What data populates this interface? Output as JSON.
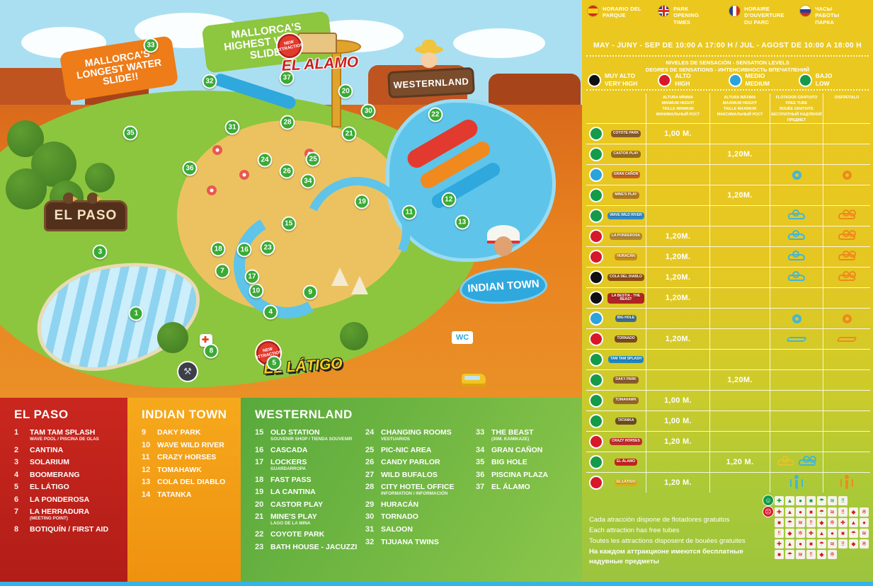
{
  "map": {
    "bubbles": {
      "longest": "MALLORCA'S LONGEST WATER SLIDE!!",
      "highest": "MALLORCA'S HIGHEST WATER SLIDE!!"
    },
    "signs": {
      "el_paso": "EL PASO",
      "indian_town": "INDIAN TOWN",
      "westernland": "WESTERNLAND",
      "el_alamo": "EL ALAMO",
      "el_latigo": "EL LÁTIGO",
      "new_badge": "NEW ATTRACTION",
      "wc": "WC"
    },
    "markers": [
      {
        "n": "1",
        "x": 23.4,
        "y": 78.9
      },
      {
        "n": "3",
        "x": 17.2,
        "y": 63.4
      },
      {
        "n": "4",
        "x": 46.5,
        "y": 78.4
      },
      {
        "n": "5",
        "x": 47.1,
        "y": 91.3
      },
      {
        "n": "7",
        "x": 38.2,
        "y": 68.2
      },
      {
        "n": "8",
        "x": 36.3,
        "y": 88.2
      },
      {
        "n": "9",
        "x": 53.3,
        "y": 73.4
      },
      {
        "n": "10",
        "x": 44.0,
        "y": 73.2
      },
      {
        "n": "11",
        "x": 70.3,
        "y": 53.4
      },
      {
        "n": "12",
        "x": 77.1,
        "y": 50.2
      },
      {
        "n": "13",
        "x": 79.4,
        "y": 55.9
      },
      {
        "n": "15",
        "x": 49.6,
        "y": 56.3
      },
      {
        "n": "16",
        "x": 42.0,
        "y": 62.9
      },
      {
        "n": "17",
        "x": 43.3,
        "y": 69.6
      },
      {
        "n": "18",
        "x": 37.5,
        "y": 62.7
      },
      {
        "n": "19",
        "x": 62.2,
        "y": 50.7
      },
      {
        "n": "20",
        "x": 59.4,
        "y": 23.0
      },
      {
        "n": "21",
        "x": 60.0,
        "y": 33.6
      },
      {
        "n": "22",
        "x": 74.8,
        "y": 28.9
      },
      {
        "n": "23",
        "x": 46.0,
        "y": 62.3
      },
      {
        "n": "24",
        "x": 45.5,
        "y": 40.2
      },
      {
        "n": "25",
        "x": 53.8,
        "y": 40.0
      },
      {
        "n": "26",
        "x": 49.3,
        "y": 43.0
      },
      {
        "n": "28",
        "x": 49.4,
        "y": 30.7
      },
      {
        "n": "30",
        "x": 63.3,
        "y": 28.0
      },
      {
        "n": "31",
        "x": 39.9,
        "y": 32.1
      },
      {
        "n": "32",
        "x": 36.0,
        "y": 20.4
      },
      {
        "n": "33",
        "x": 25.9,
        "y": 11.3
      },
      {
        "n": "34",
        "x": 52.9,
        "y": 45.5
      },
      {
        "n": "35",
        "x": 22.4,
        "y": 33.4
      },
      {
        "n": "36",
        "x": 32.6,
        "y": 42.3
      },
      {
        "n": "37",
        "x": 49.3,
        "y": 19.5
      }
    ]
  },
  "legend": {
    "panels": [
      {
        "id": "el-paso",
        "title": "EL PASO",
        "columns": [
          [
            {
              "n": "1",
              "name": "TAM TAM SPLASH",
              "sub": "WAVE POOL / PISCINA DE OLAS"
            },
            {
              "n": "2",
              "name": "CANTINA"
            },
            {
              "n": "3",
              "name": "SOLARIUM"
            },
            {
              "n": "4",
              "name": "BOOMERANG"
            },
            {
              "n": "5",
              "name": "EL LÁTIGO"
            },
            {
              "n": "6",
              "name": "LA PONDEROSA"
            },
            {
              "n": "7",
              "name": "LA HERRADURA",
              "sub": "(MEETING POINT)"
            },
            {
              "n": "8",
              "name": "BOTIQUÍN / FIRST AID"
            }
          ]
        ]
      },
      {
        "id": "indian-town",
        "title": "INDIAN TOWN",
        "columns": [
          [
            {
              "n": "9",
              "name": "DAKY PARK"
            },
            {
              "n": "10",
              "name": "WAVE WILD RIVER"
            },
            {
              "n": "11",
              "name": "CRAZY HORSES"
            },
            {
              "n": "12",
              "name": "TOMAHAWK"
            },
            {
              "n": "13",
              "name": "COLA DEL DIABLO"
            },
            {
              "n": "14",
              "name": "TATANKA"
            }
          ]
        ]
      },
      {
        "id": "westernland",
        "title": "WESTERNLAND",
        "columns": [
          [
            {
              "n": "15",
              "name": "OLD STATION",
              "sub": "SOUVENIR SHOP / TIENDA SOUVENIR"
            },
            {
              "n": "16",
              "name": "CASCADA"
            },
            {
              "n": "17",
              "name": "LOCKERS",
              "sub": "GUARDARROPA"
            },
            {
              "n": "18",
              "name": "FAST PASS"
            },
            {
              "n": "19",
              "name": "LA CANTINA"
            },
            {
              "n": "20",
              "name": "CASTOR PLAY"
            },
            {
              "n": "21",
              "name": "MINE'S PLAY",
              "sub": "LAGO DE LA MINA"
            },
            {
              "n": "22",
              "name": "COYOTE PARK"
            },
            {
              "n": "23",
              "name": "BATH HOUSE - JACUZZI"
            }
          ],
          [
            {
              "n": "24",
              "name": "CHANGING ROOMS",
              "sub": "VESTUARIOS"
            },
            {
              "n": "25",
              "name": "PIC-NIC AREA"
            },
            {
              "n": "26",
              "name": "CANDY PARLOR"
            },
            {
              "n": "27",
              "name": "WILD BUFALOS"
            },
            {
              "n": "28",
              "name": "CITY HOTEL OFFICE",
              "sub": "INFORMATION / INFORMACIÓN"
            },
            {
              "n": "29",
              "name": "HURACÁN"
            },
            {
              "n": "30",
              "name": "TORNADO"
            },
            {
              "n": "31",
              "name": "SALOON"
            },
            {
              "n": "32",
              "name": "TIJUANA TWINS"
            }
          ],
          [
            {
              "n": "33",
              "name": "THE BEAST",
              "sub": "(30M. KAMIKAZE)"
            },
            {
              "n": "34",
              "name": "GRAN CAÑON"
            },
            {
              "n": "35",
              "name": "BIG HOLE"
            },
            {
              "n": "36",
              "name": "PISCINA PLAZA"
            },
            {
              "n": "37",
              "name": "EL ÁLAMO"
            }
          ]
        ]
      }
    ]
  },
  "info": {
    "languages": [
      {
        "flag": "es",
        "lines": [
          "HORARIO DEL",
          "PARQUE"
        ]
      },
      {
        "flag": "gb",
        "lines": [
          "PARK",
          "OPENING",
          "TIMES"
        ]
      },
      {
        "flag": "fr",
        "lines": [
          "HORAIRE",
          "D'OUVERTURE",
          "DU PARC"
        ]
      },
      {
        "flag": "ru",
        "lines": [
          "ЧАСЫ",
          "РАБОТЫ",
          "ПАРКА"
        ]
      }
    ],
    "hours": "MAY - JUNY - SEP DE 10:00 A 17:00 H / JUL - AGOST DE 10:00 A 18:00 H",
    "sensation_title": [
      "NIVELES DE SENSACIÓN - SENSATION LEVELS",
      "DEGRES DE SENSATIONS - ИНТЕНСИВНОСТЬ ВПЕЧАТЛЕНИЙ"
    ],
    "levels": [
      {
        "color": "#101010",
        "lines": [
          "MUY ALTO",
          "VERY HIGH"
        ]
      },
      {
        "color": "#d7182a",
        "lines": [
          "ALTO",
          "HIGH"
        ]
      },
      {
        "color": "#2ba3dc",
        "lines": [
          "MEDIO",
          "MEDIUM"
        ]
      },
      {
        "color": "#159a49",
        "lines": [
          "BAJO",
          "LOW"
        ]
      }
    ],
    "table": {
      "headers": {
        "min": [
          "ALTURA MÍNIMA",
          "MINIMUM HEIGHT",
          "TAILLE MINIMUM",
          "МИНИМАЛЬНЫЙ РОСТ"
        ],
        "max": [
          "ALTURA MÁXIMA",
          "MAXIMUM HEIGHT",
          "TAILLE MAXIMUM",
          "МАКСИМАЛЬНЫЙ РОСТ"
        ],
        "tube": [
          "FLOTADOR GRATUITO",
          "FREE TUBE",
          "BOUÉE GRATUITE",
          "БЕСПЛАТНЫЙ НАДУВНОЙ ПРЕДМЕТ"
        ],
        "enjoy": [
          "DISFRÚTALO"
        ]
      },
      "rows": [
        {
          "name": "COYOTE PARK",
          "level": "low",
          "min": "1,00 M.",
          "max": "",
          "tube": [],
          "enjoy": [],
          "badge": "#8a5a2a"
        },
        {
          "name": "CASTOR PLAY",
          "level": "low",
          "min": "",
          "max": "1,20M.",
          "tube": [],
          "enjoy": [],
          "badge": "#9a6a1e"
        },
        {
          "name": "GRAN CAÑON",
          "level": "medium",
          "min": "",
          "max": "",
          "tube": [
            "ring"
          ],
          "enjoy": [
            "ring"
          ],
          "badge": "#c2611f"
        },
        {
          "name": "MINE'S PLAY",
          "level": "low",
          "min": "",
          "max": "1,20M.",
          "tube": [],
          "enjoy": [],
          "badge": "#b07a1e"
        },
        {
          "name": "WAVE WILD RIVER",
          "level": "low",
          "min": "",
          "max": "",
          "tube": [
            "float1"
          ],
          "enjoy": [
            "float2"
          ],
          "badge": "#2f89c6"
        },
        {
          "name": "LA PONDEROSA",
          "level": "high",
          "min": "1,20M.",
          "max": "",
          "tube": [
            "float1"
          ],
          "enjoy": [
            "float2"
          ],
          "badge": "#b3852f"
        },
        {
          "name": "HURACÁN",
          "level": "high",
          "min": "1,20M.",
          "max": "",
          "tube": [
            "float1"
          ],
          "enjoy": [
            "float2"
          ],
          "badge": "#c98a14"
        },
        {
          "name": "COLA DEL DIABLO",
          "level": "very_high",
          "min": "1,20M.",
          "max": "",
          "tube": [
            "float1"
          ],
          "enjoy": [
            "float2"
          ],
          "badge": "#8c4d12"
        },
        {
          "name": "LA BESTIA - THE BEAST",
          "level": "very_high",
          "min": "1,20M.",
          "max": "",
          "tube": [],
          "enjoy": [],
          "badge": "#b02323"
        },
        {
          "name": "BIG HOLE",
          "level": "medium",
          "min": "",
          "max": "",
          "tube": [
            "ring"
          ],
          "enjoy": [
            "ring"
          ],
          "badge": "#3b6e8f"
        },
        {
          "name": "TORNADO",
          "level": "high",
          "min": "1,20M.",
          "max": "",
          "tube": [
            "mat"
          ],
          "enjoy": [
            "mat"
          ],
          "badge": "#7a4a1c"
        },
        {
          "name": "TAM TAM SPLASH",
          "level": "low",
          "min": "",
          "max": "",
          "tube": [],
          "enjoy": [],
          "badge": "#1f86c0"
        },
        {
          "name": "DAKY PARK",
          "level": "low",
          "min": "",
          "max": "1,20M.",
          "tube": [],
          "enjoy": [],
          "badge": "#8a5a2a"
        },
        {
          "name": "TOMAHAWK",
          "level": "low",
          "min": "1,00 M.",
          "max": "",
          "tube": [],
          "enjoy": [],
          "badge": "#9a6428"
        },
        {
          "name": "TATANKA",
          "level": "low",
          "min": "1,00 M.",
          "max": "",
          "tube": [],
          "enjoy": [],
          "badge": "#6e4a1e"
        },
        {
          "name": "CRAZY HORSES",
          "level": "high",
          "min": "1,20 M.",
          "max": "",
          "tube": [],
          "enjoy": [],
          "badge": "#c22a2a"
        },
        {
          "name": "EL ÁLAMO",
          "level": "low",
          "min": "",
          "max": "1,20 M.",
          "tube": [
            "float1y",
            "float2b"
          ],
          "enjoy": [],
          "badge": "#c8201d"
        },
        {
          "name": "EL LÁTIGO",
          "level": "high",
          "min": "1,20 M.",
          "max": "",
          "tube": [
            "person"
          ],
          "enjoy": [
            "person"
          ],
          "badge": "#d8b012"
        }
      ]
    },
    "notes": [
      {
        "text": "Cada atracción dispone de flotadores gratuitos",
        "ru": false
      },
      {
        "text": "Each attraction has free tubes",
        "ru": false
      },
      {
        "text": "Toutes les attractions disposent de bouées gratuites",
        "ru": false
      },
      {
        "text": "На каждом аттракционе имеются бесплатные надувные предметы",
        "ru": true
      }
    ],
    "pictograms": {
      "allowed_glyph": "☺",
      "forbidden_glyph": "☹",
      "allowed_count": 7,
      "forbidden_rows": [
        9,
        9,
        9,
        9,
        6
      ],
      "glyph_pool": [
        "✚",
        "▲",
        "●",
        "■",
        "☂",
        "≋",
        "‼",
        "◆",
        "※"
      ]
    }
  },
  "colors": {
    "tube_icon": "#45b6d2",
    "enjoy_icon": "#ef8a1d",
    "float_yellow": "#e8c22a",
    "float_blue": "#45b6d2"
  }
}
